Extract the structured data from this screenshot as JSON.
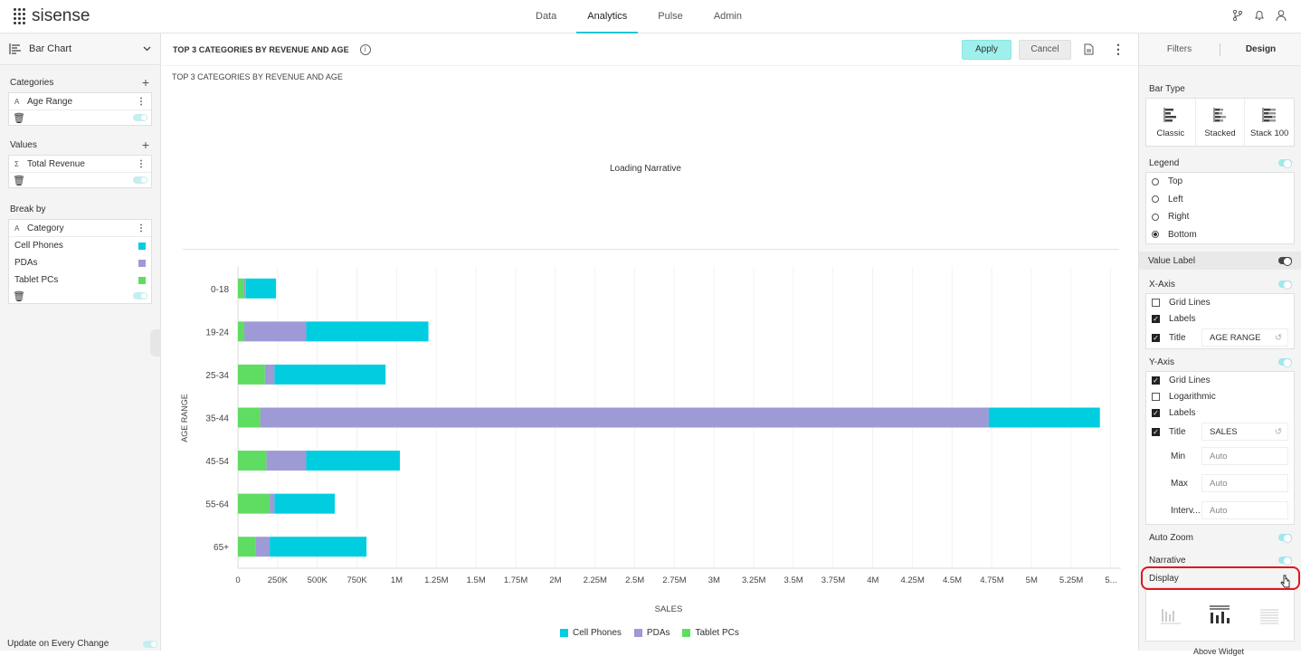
{
  "app": {
    "name": "sisense"
  },
  "nav": {
    "items": [
      "Data",
      "Analytics",
      "Pulse",
      "Admin"
    ],
    "active": "Analytics"
  },
  "left_panel": {
    "chart_type": "Bar Chart",
    "categories_label": "Categories",
    "categories_field": "Age Range",
    "values_label": "Values",
    "values_field": "Total Revenue",
    "breakby_label": "Break by",
    "breakby_field": "Category",
    "breakby_items": [
      {
        "label": "Cell Phones",
        "color": "#00cde0"
      },
      {
        "label": "PDAs",
        "color": "#9e9ad6"
      },
      {
        "label": "Tablet PCs",
        "color": "#5fdc62"
      }
    ],
    "update_label": "Update on Every Change"
  },
  "main": {
    "title": "TOP 3 CATEGORIES BY REVENUE AND AGE",
    "subtitle": "TOP 3 CATEGORIES BY REVENUE AND AGE",
    "apply_label": "Apply",
    "cancel_label": "Cancel",
    "narrative_text": "Loading Narrative"
  },
  "chart_data": {
    "type": "bar",
    "orientation": "horizontal",
    "stacked": true,
    "categories": [
      "0-18",
      "19-24",
      "25-34",
      "35-44",
      "45-54",
      "55-64",
      "65+"
    ],
    "series": [
      {
        "name": "Tablet PCs",
        "color": "#5fdc62",
        "values": [
          40000,
          40000,
          170000,
          140000,
          180000,
          200000,
          110000
        ]
      },
      {
        "name": "PDAs",
        "color": "#9e9ad6",
        "values": [
          10000,
          390000,
          60000,
          4590000,
          250000,
          30000,
          90000
        ]
      },
      {
        "name": "Cell Phones",
        "color": "#00cde0",
        "values": [
          190000,
          770000,
          700000,
          700000,
          590000,
          380000,
          610000
        ]
      }
    ],
    "xlabel": "SALES",
    "ylabel": "AGE RANGE",
    "xlim": [
      0,
      5500000
    ],
    "xticks": [
      "0",
      "250K",
      "500K",
      "750K",
      "1M",
      "1.25M",
      "1.5M",
      "1.75M",
      "2M",
      "2.25M",
      "2.5M",
      "2.75M",
      "3M",
      "3.25M",
      "3.5M",
      "3.75M",
      "4M",
      "4.25M",
      "4.5M",
      "4.75M",
      "5M",
      "5.25M",
      "5..."
    ],
    "legend_position": "bottom",
    "legend": [
      "Cell Phones",
      "PDAs",
      "Tablet PCs"
    ]
  },
  "design": {
    "tabs": [
      "Filters",
      "Design"
    ],
    "bar_type_label": "Bar Type",
    "bar_types": [
      "Classic",
      "Stacked",
      "Stack 100"
    ],
    "legend_label": "Legend",
    "legend_options": [
      "Top",
      "Left",
      "Right",
      "Bottom"
    ],
    "legend_selected": "Bottom",
    "value_label": "Value Label",
    "xaxis_label": "X-Axis",
    "xaxis_grid": "Grid Lines",
    "xaxis_labels": "Labels",
    "xaxis_title_label": "Title",
    "xaxis_title_value": "AGE RANGE",
    "yaxis_label": "Y-Axis",
    "yaxis_grid": "Grid Lines",
    "yaxis_log": "Logarithmic",
    "yaxis_labels": "Labels",
    "yaxis_title_label": "Title",
    "yaxis_title_value": "SALES",
    "min_label": "Min",
    "max_label": "Max",
    "interval_label": "Interv...",
    "auto_placeholder": "Auto",
    "auto_zoom": "Auto Zoom",
    "narrative": "Narrative",
    "display": "Display",
    "display_caption": "Above Widget"
  }
}
